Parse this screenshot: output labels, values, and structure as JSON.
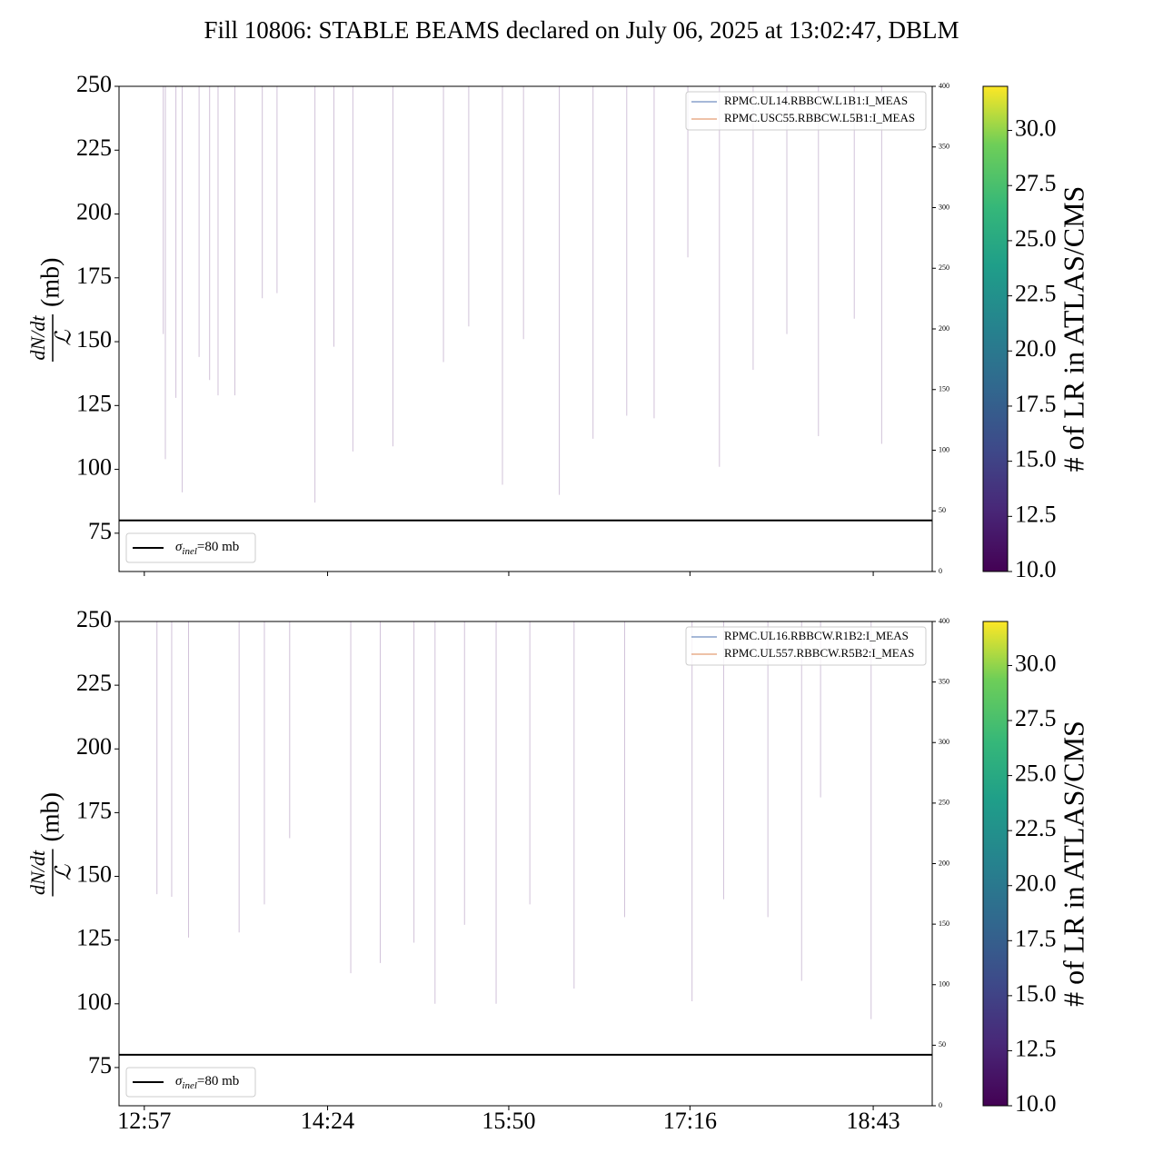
{
  "title": "Fill 10806: STABLE BEAMS declared on July 06, 2025 at 13:02:47, DBLM",
  "chart_data": [
    {
      "type": "line",
      "ylabel": {
        "numerator": "dN/dt",
        "denominator": "ℒ",
        "unit": "(mb)"
      },
      "xlim": [
        "12:45",
        "19:11"
      ],
      "xticks": [
        "12:57",
        "14:24",
        "15:50",
        "17:16",
        "18:43"
      ],
      "ylim": [
        60,
        250
      ],
      "yticks": [
        75,
        100,
        125,
        150,
        175,
        200,
        225,
        250
      ],
      "y2lim": [
        0,
        400
      ],
      "y2ticks": [
        0,
        50,
        100,
        150,
        200,
        250,
        300,
        350,
        400
      ],
      "series": [
        {
          "name": "RPMC.UL14.RBBCW.L1B1:I_MEAS",
          "color": "#4c72b0",
          "axis": "y2",
          "x": [
            "13:02",
            "18:53"
          ],
          "values": [
            0,
            0
          ]
        },
        {
          "name": "RPMC.USC55.RBBCW.L5B1:I_MEAS",
          "color": "#dd8452",
          "axis": "y2",
          "x": [
            "13:02",
            "18:53"
          ],
          "values": [
            0,
            0
          ]
        }
      ],
      "spikes": {
        "color": "#7b4f93",
        "x": [
          "13:06",
          "13:07",
          "13:12",
          "13:15",
          "13:23",
          "13:28",
          "13:32",
          "13:40",
          "13:53",
          "14:00",
          "14:18",
          "14:27",
          "14:36",
          "14:55",
          "15:19",
          "15:31",
          "15:47",
          "15:57",
          "16:14",
          "16:30",
          "16:46",
          "16:59",
          "17:15",
          "17:30",
          "17:46",
          "18:02",
          "18:17",
          "18:34",
          "18:47"
        ],
        "values": [
          153,
          104,
          128,
          91,
          144,
          135,
          129,
          129,
          167,
          169,
          87,
          148,
          107,
          109,
          142,
          156,
          94,
          151,
          90,
          112,
          121,
          120,
          183,
          101,
          139,
          153,
          113,
          159,
          110
        ]
      },
      "hline": {
        "value": 80,
        "color": "#000000",
        "symbol": "σ",
        "subscript": "inel",
        "text": "=80 mb"
      },
      "colorbar": {
        "label": "# of LR in ATLAS/CMS",
        "clim": [
          10,
          32
        ],
        "colormap": "viridis",
        "ticks": [
          {
            "value": 10,
            "label": "10.0"
          },
          {
            "value": 12.5,
            "label": "12.5"
          },
          {
            "value": 15,
            "label": "15.0"
          },
          {
            "value": 17.5,
            "label": "17.5"
          },
          {
            "value": 20,
            "label": "20.0"
          },
          {
            "value": 22.5,
            "label": "22.5"
          },
          {
            "value": 25,
            "label": "25.0"
          },
          {
            "value": 27.5,
            "label": "27.5"
          },
          {
            "value": 30,
            "label": "30.0"
          }
        ]
      }
    },
    {
      "type": "line",
      "ylabel": {
        "numerator": "dN/dt",
        "denominator": "ℒ",
        "unit": "(mb)"
      },
      "xlim": [
        "12:45",
        "19:11"
      ],
      "xticks": [
        "12:57",
        "14:24",
        "15:50",
        "17:16",
        "18:43"
      ],
      "ylim": [
        60,
        250
      ],
      "yticks": [
        75,
        100,
        125,
        150,
        175,
        200,
        225,
        250
      ],
      "y2lim": [
        0,
        400
      ],
      "y2ticks": [
        0,
        50,
        100,
        150,
        200,
        250,
        300,
        350,
        400
      ],
      "series": [
        {
          "name": "RPMC.UL16.RBBCW.R1B2:I_MEAS",
          "color": "#4c72b0",
          "axis": "y2",
          "x": [
            "13:02",
            "18:53"
          ],
          "values": [
            0,
            0
          ]
        },
        {
          "name": "RPMC.UL557.RBBCW.R5B2:I_MEAS",
          "color": "#dd8452",
          "axis": "y2",
          "x": [
            "13:02",
            "18:53"
          ],
          "values": [
            0,
            0
          ]
        }
      ],
      "spikes": {
        "color": "#7b4f93",
        "x": [
          "13:03",
          "13:10",
          "13:18",
          "13:42",
          "13:54",
          "14:06",
          "14:35",
          "14:49",
          "15:05",
          "15:15",
          "15:29",
          "15:44",
          "16:00",
          "16:21",
          "16:45",
          "17:17",
          "17:32",
          "17:53",
          "18:09",
          "18:18",
          "18:42"
        ],
        "values": [
          143,
          142,
          126,
          128,
          139,
          165,
          112,
          116,
          124,
          100,
          131,
          100,
          139,
          106,
          134,
          101,
          141,
          134,
          109,
          181,
          94
        ]
      },
      "hline": {
        "value": 80,
        "color": "#000000",
        "symbol": "σ",
        "subscript": "inel",
        "text": "=80 mb"
      },
      "colorbar": {
        "label": "# of LR in ATLAS/CMS",
        "clim": [
          10,
          32
        ],
        "colormap": "viridis",
        "ticks": [
          {
            "value": 10,
            "label": "10.0"
          },
          {
            "value": 12.5,
            "label": "12.5"
          },
          {
            "value": 15,
            "label": "15.0"
          },
          {
            "value": 17.5,
            "label": "17.5"
          },
          {
            "value": 20,
            "label": "20.0"
          },
          {
            "value": 22.5,
            "label": "22.5"
          },
          {
            "value": 25,
            "label": "25.0"
          },
          {
            "value": 27.5,
            "label": "27.5"
          },
          {
            "value": 30,
            "label": "30.0"
          }
        ]
      }
    }
  ]
}
